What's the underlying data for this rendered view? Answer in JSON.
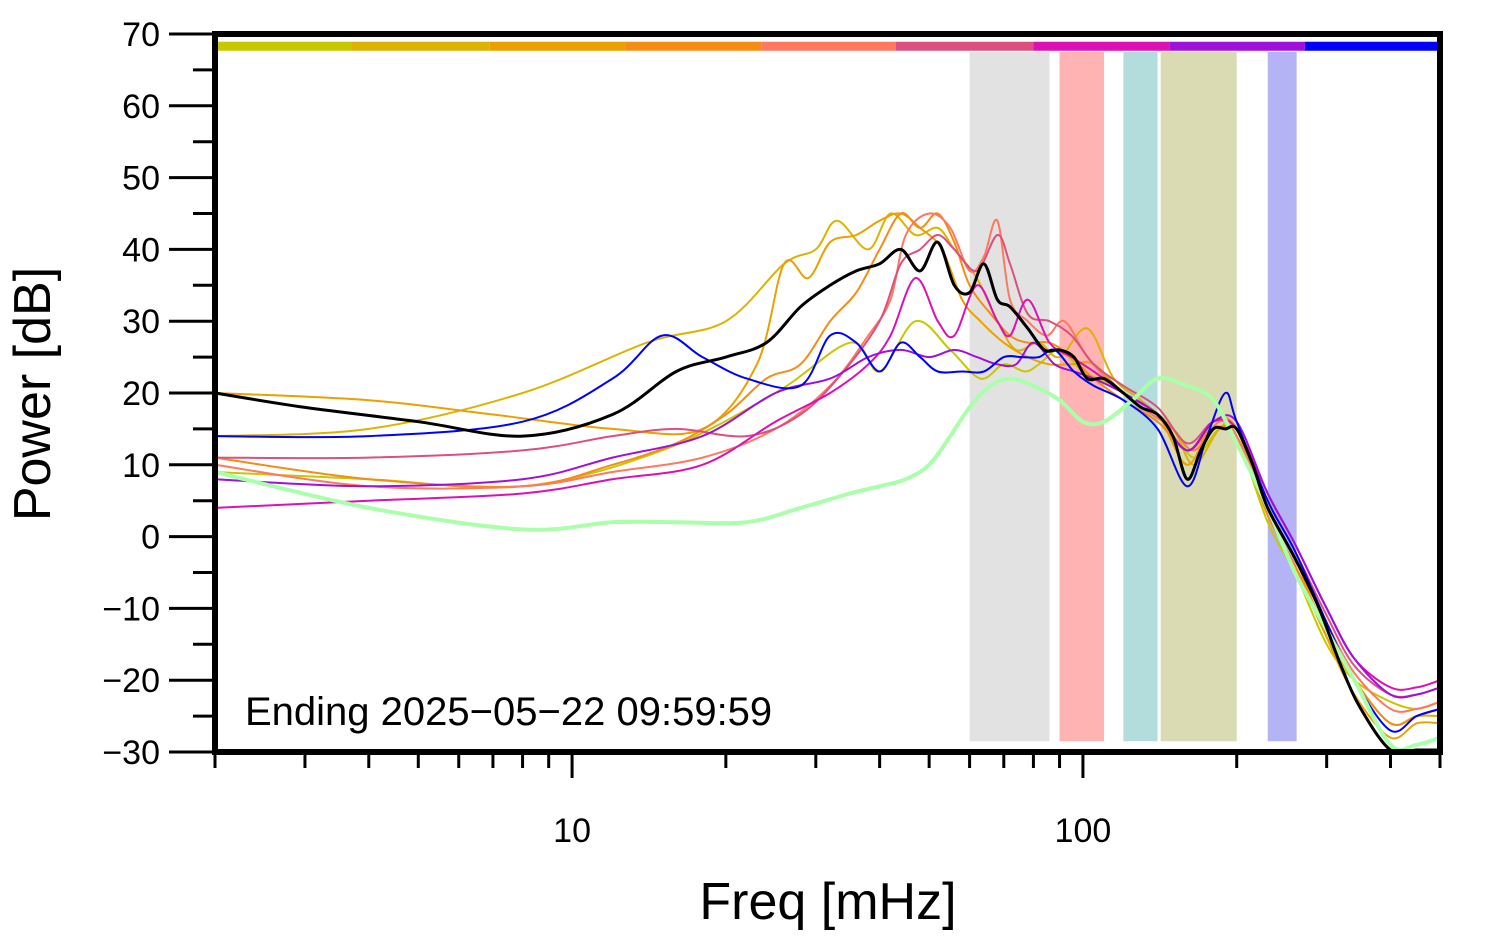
{
  "chart_data": {
    "type": "line",
    "title": "",
    "xlabel": "Freq [mHz]",
    "ylabel": "Power [dB]",
    "x_scale": "log",
    "xlim": [
      2,
      500
    ],
    "ylim": [
      -30,
      70
    ],
    "x_tick_labels": [
      {
        "value": 10,
        "label": "10"
      },
      {
        "value": 100,
        "label": "100"
      }
    ],
    "y_tick_labels": [
      {
        "value": 70,
        "label": "70"
      },
      {
        "value": 60,
        "label": "60"
      },
      {
        "value": 50,
        "label": "50"
      },
      {
        "value": 40,
        "label": "40"
      },
      {
        "value": 30,
        "label": "30"
      },
      {
        "value": 20,
        "label": "20"
      },
      {
        "value": 10,
        "label": "10"
      },
      {
        "value": 0,
        "label": "0"
      },
      {
        "value": -10,
        "label": "−10"
      },
      {
        "value": -20,
        "label": "−20"
      },
      {
        "value": -30,
        "label": "−30"
      }
    ],
    "annotation": "Ending 2025−05−22 09:59:59",
    "grid": false,
    "legend": "none",
    "bands": [
      {
        "x0": 60,
        "x1": 86,
        "y0": -28.5,
        "y1": 67.5,
        "color": "#e2e2e2"
      },
      {
        "x0": 90,
        "x1": 110,
        "y0": -28.5,
        "y1": 67.5,
        "color": "#ffb3b3"
      },
      {
        "x0": 120,
        "x1": 140,
        "y0": -28.5,
        "y1": 67.5,
        "color": "#b3dcdc"
      },
      {
        "x0": 142,
        "x1": 200,
        "y0": -28.5,
        "y1": 67.5,
        "color": "#dadab3"
      },
      {
        "x0": 230,
        "x1": 262,
        "y0": -28.5,
        "y1": 67.5,
        "color": "#b3b3f5"
      }
    ],
    "color_strip": {
      "y": 68.3,
      "segments": [
        {
          "x0": 2,
          "x1": 3.7,
          "color": "#c8c800"
        },
        {
          "x0": 3.7,
          "x1": 6.9,
          "color": "#dcb400"
        },
        {
          "x0": 6.9,
          "x1": 12.7,
          "color": "#eba000"
        },
        {
          "x0": 12.7,
          "x1": 23.5,
          "color": "#f58c14"
        },
        {
          "x0": 23.5,
          "x1": 43,
          "color": "#ff7860"
        },
        {
          "x0": 43,
          "x1": 80,
          "color": "#dc5080"
        },
        {
          "x0": 80,
          "x1": 148,
          "color": "#dc10b4"
        },
        {
          "x0": 148,
          "x1": 272,
          "color": "#a010dc"
        },
        {
          "x0": 272,
          "x1": 500,
          "color": "#0000ff"
        }
      ]
    },
    "series": [
      {
        "color": "#c8c800",
        "width": 2,
        "x": [
          2,
          4,
          8,
          15,
          25,
          35,
          40,
          47,
          55,
          63,
          70,
          77,
          82,
          90,
          100,
          115,
          130,
          150,
          165,
          185,
          200,
          230,
          260,
          300,
          340,
          400,
          450,
          500
        ],
        "y": [
          9,
          8,
          7,
          12,
          20,
          27,
          23,
          30,
          26,
          22,
          24,
          23,
          24,
          26,
          23,
          21,
          18,
          15,
          11,
          15,
          14,
          2,
          -5,
          -15,
          -20,
          -23,
          -24,
          -23
        ]
      },
      {
        "color": "#dcb400",
        "width": 2,
        "x": [
          2,
          4,
          8,
          14,
          20,
          26,
          30,
          33,
          38,
          42,
          47,
          52,
          56,
          62,
          68,
          74,
          82,
          90,
          102,
          115,
          130,
          150,
          165,
          185,
          200,
          230,
          260,
          300,
          340,
          400,
          450,
          500
        ],
        "y": [
          14,
          15,
          20,
          27,
          30,
          38,
          40,
          44,
          40,
          45,
          42,
          43,
          40,
          36,
          30,
          26,
          27,
          25,
          29,
          22,
          19,
          15,
          10,
          15,
          15,
          3,
          -4,
          -14,
          -20,
          -26,
          -25,
          -25
        ]
      },
      {
        "color": "#eba000",
        "width": 2,
        "x": [
          2,
          4,
          7,
          12,
          18,
          23,
          26,
          29,
          32,
          36,
          40,
          44,
          48,
          53,
          58,
          63,
          70,
          78,
          86,
          95,
          105,
          120,
          140,
          160,
          180,
          200,
          230,
          260,
          300,
          340,
          400,
          450,
          500
        ],
        "y": [
          20,
          19,
          17,
          15,
          15,
          24,
          38,
          36,
          41,
          42,
          44,
          45,
          43,
          40,
          33,
          30,
          27,
          25,
          24,
          24,
          24,
          20,
          17,
          10,
          16,
          15,
          3,
          -3,
          -14,
          -22,
          -28,
          -26,
          -26
        ]
      },
      {
        "color": "#f58c14",
        "width": 2,
        "x": [
          2,
          4,
          8,
          12,
          16,
          20,
          24,
          28,
          32,
          36,
          40,
          44,
          48,
          52,
          56,
          60,
          66,
          72,
          78,
          86,
          95,
          105,
          120,
          140,
          160,
          180,
          200,
          230,
          260,
          300,
          340,
          400,
          450,
          500
        ],
        "y": [
          11,
          8,
          7,
          10,
          13,
          17,
          22,
          24,
          30,
          34,
          40,
          45,
          43,
          45,
          41,
          35,
          31,
          28,
          27,
          27,
          25,
          22,
          19,
          16,
          12,
          15,
          14,
          3,
          -4,
          -13,
          -20,
          -26,
          -25,
          -24
        ]
      },
      {
        "color": "#ff7860",
        "width": 2,
        "x": [
          2,
          4,
          8,
          12,
          18,
          25,
          32,
          38,
          42,
          45,
          50,
          55,
          60,
          64,
          68,
          72,
          78,
          85,
          92,
          102,
          115,
          130,
          150,
          165,
          185,
          200,
          230,
          260,
          300,
          340,
          400,
          450,
          500
        ],
        "y": [
          10,
          7,
          7,
          9,
          11,
          15,
          21,
          28,
          33,
          42,
          45,
          43,
          37,
          39,
          44,
          33,
          30,
          28,
          30,
          25,
          21,
          18,
          15,
          12,
          16,
          14,
          4,
          -3,
          -12,
          -19,
          -24,
          -24,
          -23
        ]
      },
      {
        "color": "#dc5080",
        "width": 2,
        "x": [
          2,
          4,
          8,
          12,
          16,
          22,
          28,
          34,
          40,
          44,
          48,
          52,
          56,
          62,
          68,
          72,
          78,
          86,
          95,
          105,
          120,
          140,
          160,
          180,
          200,
          230,
          260,
          300,
          340,
          400,
          450,
          500
        ],
        "y": [
          11,
          11,
          12,
          14,
          15,
          14,
          17,
          23,
          30,
          38,
          40,
          42,
          40,
          37,
          42,
          38,
          31,
          30,
          28,
          24,
          21,
          18,
          13,
          16,
          15,
          5,
          -2,
          -11,
          -18,
          -22,
          -22,
          -21
        ]
      },
      {
        "color": "#dc10b4",
        "width": 2,
        "x": [
          2,
          4,
          8,
          12,
          18,
          25,
          32,
          38,
          42,
          47,
          52,
          56,
          62,
          68,
          72,
          78,
          86,
          95,
          105,
          120,
          140,
          160,
          180,
          200,
          230,
          260,
          300,
          340,
          400,
          450,
          500
        ],
        "y": [
          4,
          5,
          6,
          8,
          10,
          16,
          20,
          24,
          28,
          36,
          30,
          28,
          35,
          30,
          28,
          33,
          27,
          25,
          23,
          20,
          17,
          12,
          16,
          15,
          6,
          -1,
          -10,
          -17,
          -21,
          -21,
          -20
        ]
      },
      {
        "color": "#a010dc",
        "width": 2,
        "x": [
          2,
          4,
          8,
          12,
          18,
          25,
          32,
          38,
          44,
          50,
          56,
          62,
          68,
          74,
          80,
          88,
          96,
          105,
          120,
          140,
          160,
          180,
          200,
          230,
          260,
          300,
          340,
          400,
          450,
          500
        ],
        "y": [
          8,
          7,
          8,
          11,
          14,
          20,
          22,
          25,
          26,
          25,
          26,
          25,
          24,
          24,
          27,
          24,
          23,
          22,
          20,
          17,
          12,
          16,
          16,
          6,
          -1,
          -10,
          -17,
          -22,
          -22,
          -21
        ]
      },
      {
        "color": "#0000ff",
        "width": 2,
        "x": [
          2,
          4,
          8,
          12,
          15,
          18,
          22,
          28,
          32,
          36,
          40,
          44,
          48,
          52,
          58,
          64,
          70,
          76,
          82,
          88,
          96,
          105,
          120,
          140,
          160,
          175,
          190,
          200,
          230,
          260,
          300,
          340,
          400,
          450,
          500
        ],
        "y": [
          14,
          14,
          16,
          22,
          28,
          25,
          22,
          21,
          28,
          27,
          23,
          27,
          25,
          23,
          23,
          23,
          25,
          25,
          25,
          26,
          23,
          21,
          19,
          15,
          7,
          14,
          20,
          16,
          5,
          -2,
          -12,
          -20,
          -27,
          -25,
          -24
        ]
      },
      {
        "color": "#aaffaa",
        "width": 4,
        "x": [
          2,
          4,
          8,
          12,
          16,
          22,
          28,
          35,
          40,
          45,
          50,
          55,
          60,
          66,
          72,
          80,
          90,
          100,
          110,
          125,
          140,
          160,
          180,
          200,
          230,
          260,
          300,
          340,
          400,
          450,
          500
        ],
        "y": [
          9,
          4,
          1,
          2,
          2,
          2,
          4,
          6,
          7,
          8,
          10,
          14,
          18,
          21,
          22,
          21,
          19,
          16,
          16,
          19,
          22,
          21,
          19,
          13,
          4,
          -5,
          -13,
          -20,
          -29,
          -29,
          -28
        ]
      },
      {
        "color": "#000000",
        "width": 3,
        "x": [
          2,
          3,
          5,
          8,
          12,
          16,
          20,
          24,
          28,
          32,
          36,
          40,
          44,
          48,
          52,
          56,
          60,
          64,
          68,
          72,
          78,
          84,
          90,
          96,
          102,
          110,
          120,
          130,
          140,
          150,
          160,
          170,
          180,
          190,
          200,
          215,
          230,
          260,
          290,
          320,
          350,
          400,
          450,
          500
        ],
        "y": [
          20,
          18,
          16,
          14,
          17,
          23,
          25,
          27,
          32,
          35,
          37,
          38,
          40,
          37,
          41,
          35,
          34,
          38,
          33,
          32,
          29,
          26,
          26,
          25,
          22,
          22,
          20,
          18,
          17,
          14,
          8,
          12,
          15,
          15,
          15,
          10,
          4,
          -3,
          -10,
          -18,
          -24,
          -30,
          -30,
          -30
        ]
      }
    ]
  }
}
